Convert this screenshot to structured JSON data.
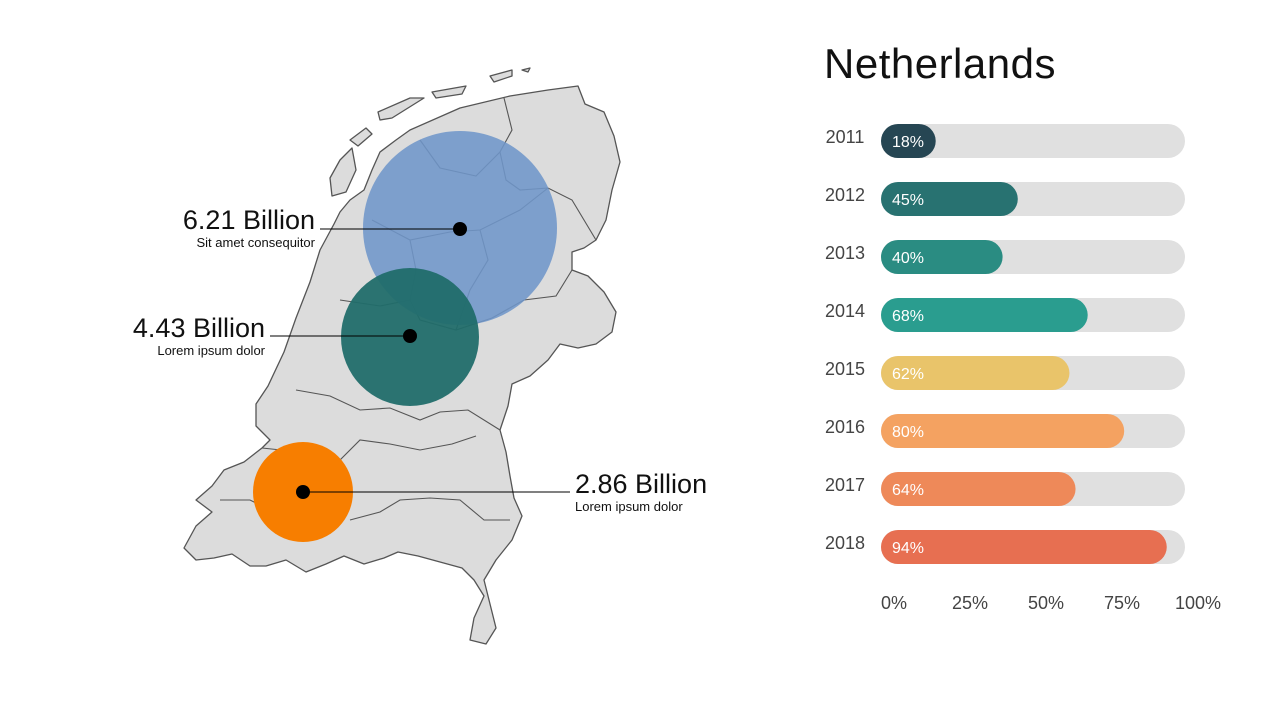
{
  "title": "Netherlands",
  "callouts": [
    {
      "value": "6.21 Billion",
      "caption": "Sit amet consequitor",
      "color": "#6f96c9"
    },
    {
      "value": "4.43 Billion",
      "caption": "Lorem ipsum dolor",
      "color": "#216d6a"
    },
    {
      "value": "2.86 Billion",
      "caption": "Lorem ipsum dolor",
      "color": "#f77e00"
    }
  ],
  "chart_data": {
    "type": "bar",
    "orientation": "horizontal",
    "title": "Netherlands",
    "categories": [
      "2011",
      "2012",
      "2013",
      "2014",
      "2015",
      "2016",
      "2017",
      "2018"
    ],
    "values": [
      18,
      45,
      40,
      68,
      62,
      80,
      64,
      94
    ],
    "value_labels": [
      "18%",
      "45%",
      "40%",
      "68%",
      "62%",
      "80%",
      "64%",
      "94%"
    ],
    "colors": [
      "#264653",
      "#287271",
      "#2a8c82",
      "#2a9d8f",
      "#e9c46a",
      "#f4a261",
      "#ee8959",
      "#e76f51"
    ],
    "track_color": "#e0e0e0",
    "xlim": [
      0,
      100
    ],
    "xticks": [
      "0%",
      "25%",
      "50%",
      "75%",
      "100%"
    ],
    "grid": false
  }
}
